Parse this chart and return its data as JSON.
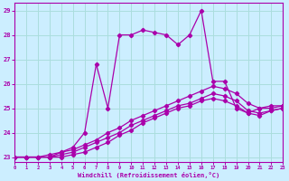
{
  "xlabel": "Windchill (Refroidissement éolien,°C)",
  "background_color": "#cceeff",
  "grid_color": "#aadddd",
  "line_color": "#aa00aa",
  "x_ticks": [
    0,
    1,
    2,
    3,
    4,
    5,
    6,
    7,
    8,
    9,
    10,
    11,
    12,
    13,
    14,
    15,
    16,
    17,
    18,
    19,
    20,
    21,
    22,
    23
  ],
  "y_ticks": [
    23,
    24,
    25,
    26,
    27,
    28,
    29
  ],
  "xlim": [
    0,
    23
  ],
  "ylim": [
    22.8,
    29.3
  ],
  "line1_x": [
    0,
    1,
    2,
    3,
    4,
    5,
    6,
    7,
    8,
    9,
    10,
    11,
    12,
    13,
    14,
    15,
    16,
    17,
    18,
    19,
    20,
    21,
    22,
    23
  ],
  "line1_y": [
    23.0,
    23.0,
    23.0,
    23.0,
    23.2,
    23.4,
    24.0,
    26.8,
    25.0,
    28.0,
    28.0,
    28.2,
    28.1,
    28.0,
    27.6,
    28.0,
    29.0,
    26.1,
    26.1,
    25.0,
    24.8,
    25.0,
    25.1,
    25.1
  ],
  "line2_x": [
    0,
    1,
    2,
    3,
    4,
    5,
    6,
    7,
    8,
    9,
    10,
    11,
    12,
    13,
    14,
    15,
    16,
    17,
    18,
    19,
    20,
    21,
    22,
    23
  ],
  "line2_y": [
    23.0,
    23.0,
    23.0,
    23.1,
    23.2,
    23.3,
    23.5,
    23.7,
    24.0,
    24.2,
    24.5,
    24.7,
    24.9,
    25.1,
    25.3,
    25.5,
    25.7,
    25.9,
    25.8,
    25.6,
    25.2,
    25.0,
    25.0,
    25.1
  ],
  "line3_x": [
    0,
    1,
    2,
    3,
    4,
    5,
    6,
    7,
    8,
    9,
    10,
    11,
    12,
    13,
    14,
    15,
    16,
    17,
    18,
    19,
    20,
    21,
    22,
    23
  ],
  "line3_y": [
    23.0,
    23.0,
    23.0,
    23.0,
    23.1,
    23.2,
    23.4,
    23.6,
    23.8,
    24.0,
    24.3,
    24.5,
    24.7,
    24.9,
    25.1,
    25.2,
    25.4,
    25.6,
    25.5,
    25.3,
    24.9,
    24.8,
    24.9,
    25.0
  ],
  "line4_x": [
    0,
    1,
    2,
    3,
    4,
    5,
    6,
    7,
    8,
    9,
    10,
    11,
    12,
    13,
    14,
    15,
    16,
    17,
    18,
    19,
    20,
    21,
    22,
    23
  ],
  "line4_y": [
    23.0,
    23.0,
    23.0,
    23.0,
    23.0,
    23.1,
    23.2,
    23.4,
    23.6,
    23.9,
    24.1,
    24.4,
    24.6,
    24.8,
    25.0,
    25.1,
    25.3,
    25.4,
    25.3,
    25.1,
    24.8,
    24.7,
    24.9,
    25.0
  ]
}
